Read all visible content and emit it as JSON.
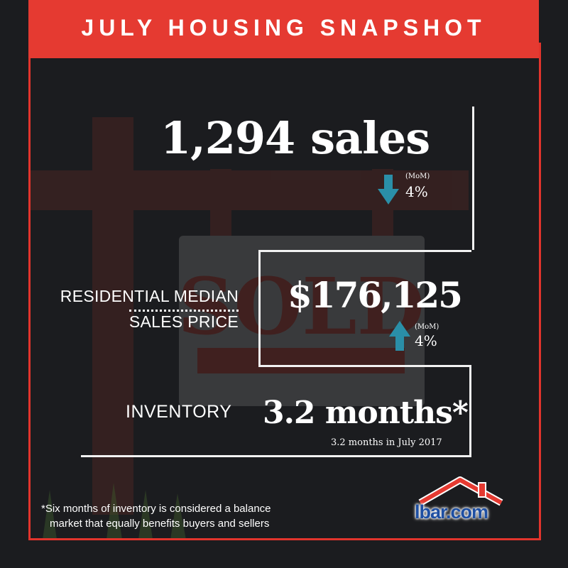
{
  "banner": {
    "title": "JULY HOUSING SNAPSHOT"
  },
  "sales": {
    "value": "1,294",
    "unit": "sales",
    "change_period": "(MoM)",
    "change_pct": "4%",
    "direction": "down"
  },
  "price": {
    "label_line1": "RESIDENTIAL MEDIAN",
    "label_line2": "SALES PRICE",
    "value": "$176,125",
    "change_period": "(MoM)",
    "change_pct": "4%",
    "direction": "up"
  },
  "inventory": {
    "label": "INVENTORY",
    "value": "3.2 months*",
    "note": "3.2 months in July 2017"
  },
  "footnote": {
    "line1": "*Six months of inventory is considered a balance",
    "line2": "market that equally benefits buyers and sellers"
  },
  "logo": {
    "text": "lbar.com"
  },
  "background_art": {
    "sign_text": "SOLD"
  },
  "colors": {
    "accent": "#e53a31",
    "arrow": "#2a8fa8",
    "background": "#1b1c1f",
    "logo_blue": "#1e4fa3"
  }
}
